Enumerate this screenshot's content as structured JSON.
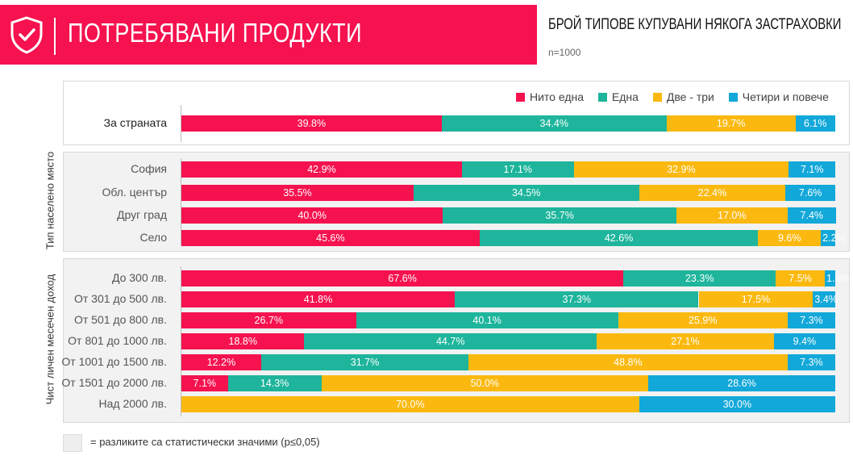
{
  "header": {
    "title": "ПОТРЕБЯВАНИ ПРОДУКТИ",
    "icon": "shield-check-icon"
  },
  "subtitle": "БРОЙ ТИПОВЕ КУПУВАНИ НЯКОГА ЗАСТРАХОВКИ",
  "sample": "n=1000",
  "footnote": "= разликите са статистически значими (p≤0,05)",
  "colors": {
    "nito": "#f5124f",
    "edna": "#1eb59c",
    "dve": "#fbb910",
    "chetiri": "#12a8d9",
    "panel": "#f2f2f2"
  },
  "chart_data": {
    "type": "bar",
    "orientation": "horizontal",
    "stacked": true,
    "percent": true,
    "series": [
      {
        "name": "Нито една"
      },
      {
        "name": "Една"
      },
      {
        "name": "Две - три"
      },
      {
        "name": "Четири и повече"
      }
    ],
    "groups": [
      {
        "label": "",
        "shaded": false,
        "rows": [
          {
            "label": "За страната",
            "values": [
              39.8,
              34.4,
              19.7,
              6.1
            ]
          }
        ]
      },
      {
        "label": "Тип населено място",
        "shaded": true,
        "rows": [
          {
            "label": "София",
            "values": [
              42.9,
              17.1,
              32.9,
              7.1
            ]
          },
          {
            "label": "Обл. център",
            "values": [
              35.5,
              34.5,
              22.4,
              7.6
            ]
          },
          {
            "label": "Друг град",
            "values": [
              40.0,
              35.7,
              17.0,
              7.4
            ]
          },
          {
            "label": "Село",
            "values": [
              45.6,
              42.6,
              9.6,
              2.2
            ]
          }
        ]
      },
      {
        "label": "Чист личен месечен доход",
        "shaded": true,
        "rows": [
          {
            "label": "До 300 лв.",
            "values": [
              67.6,
              23.3,
              7.5,
              1.6
            ]
          },
          {
            "label": "От 301 до 500 лв.",
            "values": [
              41.8,
              37.3,
              17.5,
              3.4
            ]
          },
          {
            "label": "От 501 до 800 лв.",
            "values": [
              26.7,
              40.1,
              25.9,
              7.3
            ]
          },
          {
            "label": "От 801 до 1000 лв.",
            "values": [
              18.8,
              44.7,
              27.1,
              9.4
            ]
          },
          {
            "label": "От 1001 до 1500 лв.",
            "values": [
              12.2,
              31.7,
              48.8,
              7.3
            ]
          },
          {
            "label": "От 1501 до 2000 лв.",
            "values": [
              7.1,
              14.3,
              50.0,
              28.6
            ]
          },
          {
            "label": "Над 2000 лв.",
            "values": [
              0,
              0,
              70.0,
              30.0
            ]
          }
        ]
      }
    ],
    "legend_position": "top-right",
    "grid": false
  }
}
